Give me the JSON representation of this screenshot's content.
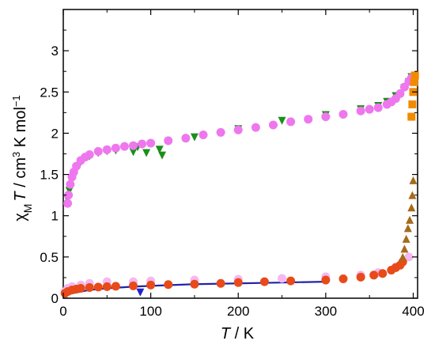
{
  "chart_data": {
    "type": "scatter",
    "title": "",
    "xlabel": {
      "italic": "T",
      "rest": " / K"
    },
    "ylabel": {
      "chi": "χ",
      "sub": "M",
      "T": "T",
      "rest": " / cm",
      "sup3": "3",
      "rest2": " K mol",
      "supm1": "−1"
    },
    "xlim": [
      0,
      405
    ],
    "ylim": [
      0,
      3.5
    ],
    "x_ticks": [
      0,
      100,
      200,
      300,
      400
    ],
    "x_tick_labels": [
      "0",
      "100",
      "200",
      "300",
      "400"
    ],
    "y_ticks": [
      0,
      0.5,
      1,
      1.5,
      2,
      2.5,
      3
    ],
    "y_tick_labels": [
      "0",
      "0.5",
      "1",
      "1.5",
      "2",
      "2.5",
      "3"
    ],
    "grid": false,
    "legend": "none",
    "series": [
      {
        "marker": "down-triangle",
        "color": "#1a8f1a",
        "x": [
          5,
          7,
          10,
          15,
          20,
          30,
          40,
          50,
          60,
          80,
          85,
          95,
          110,
          113,
          150,
          200,
          250,
          300,
          340,
          360,
          370,
          380,
          390,
          395,
          398
        ],
        "y": [
          1.2,
          1.3,
          1.45,
          1.58,
          1.65,
          1.72,
          1.76,
          1.78,
          1.79,
          1.77,
          1.83,
          1.76,
          1.8,
          1.73,
          1.95,
          2.05,
          2.15,
          2.22,
          2.29,
          2.33,
          2.38,
          2.45,
          2.55,
          2.62,
          2.68
        ]
      },
      {
        "marker": "circle",
        "color": "#ee77ee",
        "x": [
          5,
          6,
          8,
          10,
          12,
          15,
          20,
          25,
          30,
          40,
          50,
          60,
          70,
          80,
          90,
          100,
          120,
          140,
          160,
          180,
          200,
          220,
          240,
          260,
          280,
          300,
          320,
          340,
          350,
          360,
          370,
          375,
          380,
          385,
          390,
          395,
          398
        ],
        "y": [
          1.15,
          1.25,
          1.38,
          1.47,
          1.53,
          1.6,
          1.67,
          1.71,
          1.74,
          1.78,
          1.8,
          1.82,
          1.84,
          1.85,
          1.87,
          1.88,
          1.91,
          1.94,
          1.98,
          2.01,
          2.04,
          2.07,
          2.1,
          2.14,
          2.17,
          2.2,
          2.23,
          2.27,
          2.29,
          2.31,
          2.35,
          2.38,
          2.42,
          2.48,
          2.56,
          2.63,
          2.67
        ]
      },
      {
        "marker": "square",
        "color": "#f28a00",
        "x": [
          398,
          399,
          400,
          401,
          402
        ],
        "y": [
          2.2,
          2.35,
          2.5,
          2.62,
          2.7
        ]
      },
      {
        "marker": "line",
        "color": "#2222aa",
        "x": [
          2,
          5,
          10,
          20,
          30,
          50,
          80,
          100,
          150,
          200,
          250,
          300
        ],
        "y": [
          0.02,
          0.04,
          0.06,
          0.08,
          0.1,
          0.12,
          0.14,
          0.15,
          0.17,
          0.18,
          0.19,
          0.2
        ]
      },
      {
        "marker": "down-triangle",
        "color": "#2222cc",
        "x": [
          88
        ],
        "y": [
          0.07
        ]
      },
      {
        "marker": "circle",
        "color": "#f5b8f0",
        "x": [
          2,
          5,
          10,
          20,
          30,
          50,
          80,
          100,
          150,
          200,
          250,
          300,
          340,
          360,
          380,
          395
        ],
        "y": [
          0.08,
          0.12,
          0.14,
          0.16,
          0.18,
          0.2,
          0.2,
          0.21,
          0.22,
          0.23,
          0.24,
          0.26,
          0.28,
          0.31,
          0.38,
          0.5
        ]
      },
      {
        "marker": "circle",
        "color": "#e84a1a",
        "x": [
          2,
          5,
          10,
          15,
          20,
          30,
          40,
          50,
          60,
          80,
          100,
          120,
          150,
          180,
          200,
          230,
          260,
          300,
          320,
          340,
          355,
          365,
          375,
          380,
          385,
          388
        ],
        "y": [
          0.06,
          0.08,
          0.1,
          0.11,
          0.12,
          0.13,
          0.135,
          0.14,
          0.145,
          0.15,
          0.16,
          0.165,
          0.17,
          0.18,
          0.19,
          0.2,
          0.21,
          0.22,
          0.235,
          0.255,
          0.28,
          0.3,
          0.34,
          0.37,
          0.4,
          0.44
        ]
      },
      {
        "marker": "up-triangle",
        "color": "#a66a1a",
        "x": [
          388,
          390,
          392,
          394,
          396,
          398,
          399,
          400
        ],
        "y": [
          0.5,
          0.6,
          0.72,
          0.85,
          0.95,
          1.1,
          1.25,
          1.43
        ]
      }
    ]
  }
}
